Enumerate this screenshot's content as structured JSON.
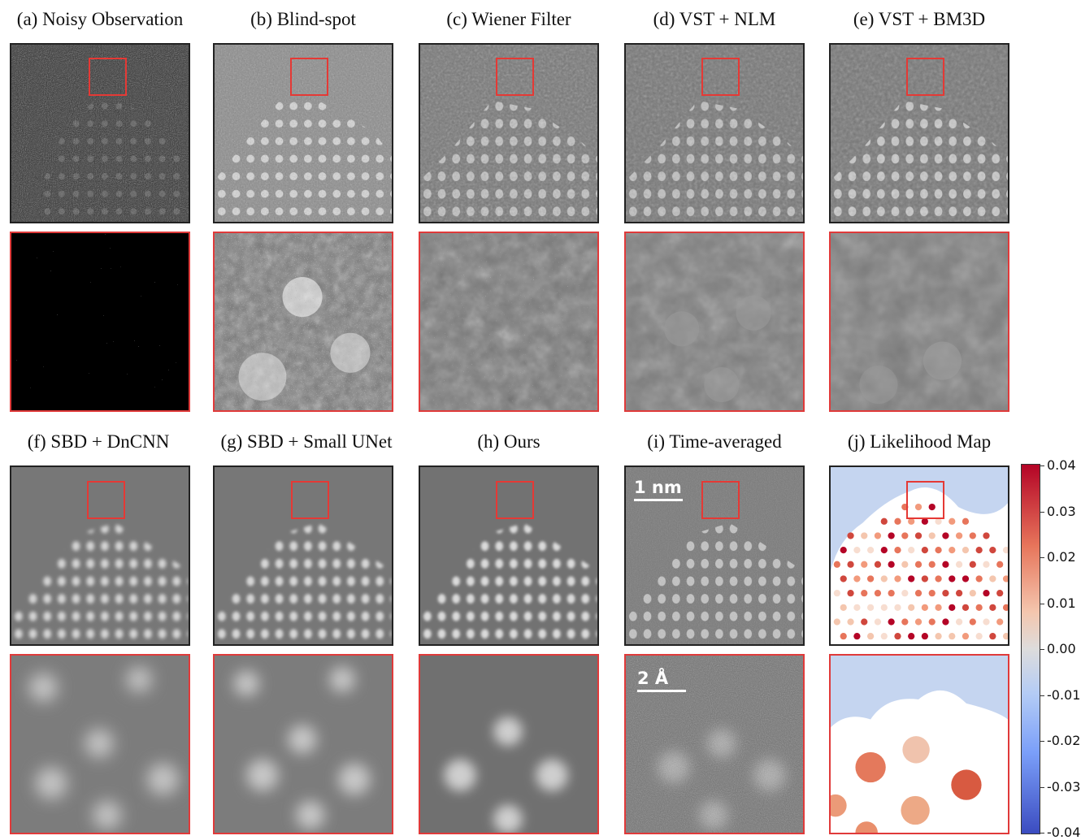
{
  "captions": {
    "a": "(a) Noisy Observation",
    "b": "(b) Blind-spot",
    "c": "(c) Wiener Filter",
    "d": "(d) VST + NLM",
    "e": "(e) VST + BM3D",
    "f": "(f) SBD + DnCNN",
    "g": "(g) SBD + Small UNet",
    "h": "(h) Ours",
    "i": "(i) Time-averaged",
    "j": "(j) Likelihood Map"
  },
  "scalebars": {
    "overview": "1 nm",
    "zoom": "2 Å"
  },
  "colorbar": {
    "ticks": [
      "0.04",
      "0.03",
      "0.02",
      "0.01",
      "0.00",
      "-0.01",
      "-0.02",
      "-0.03",
      "-0.04"
    ],
    "min": -0.04,
    "max": 0.04,
    "colormap": "coolwarm",
    "colors": {
      "high": "#b40426",
      "mid": "#dddcdc",
      "low": "#3b4cc0"
    }
  },
  "colors": {
    "roi_box": "#e53935",
    "background_region": "#c5d5f0"
  }
}
